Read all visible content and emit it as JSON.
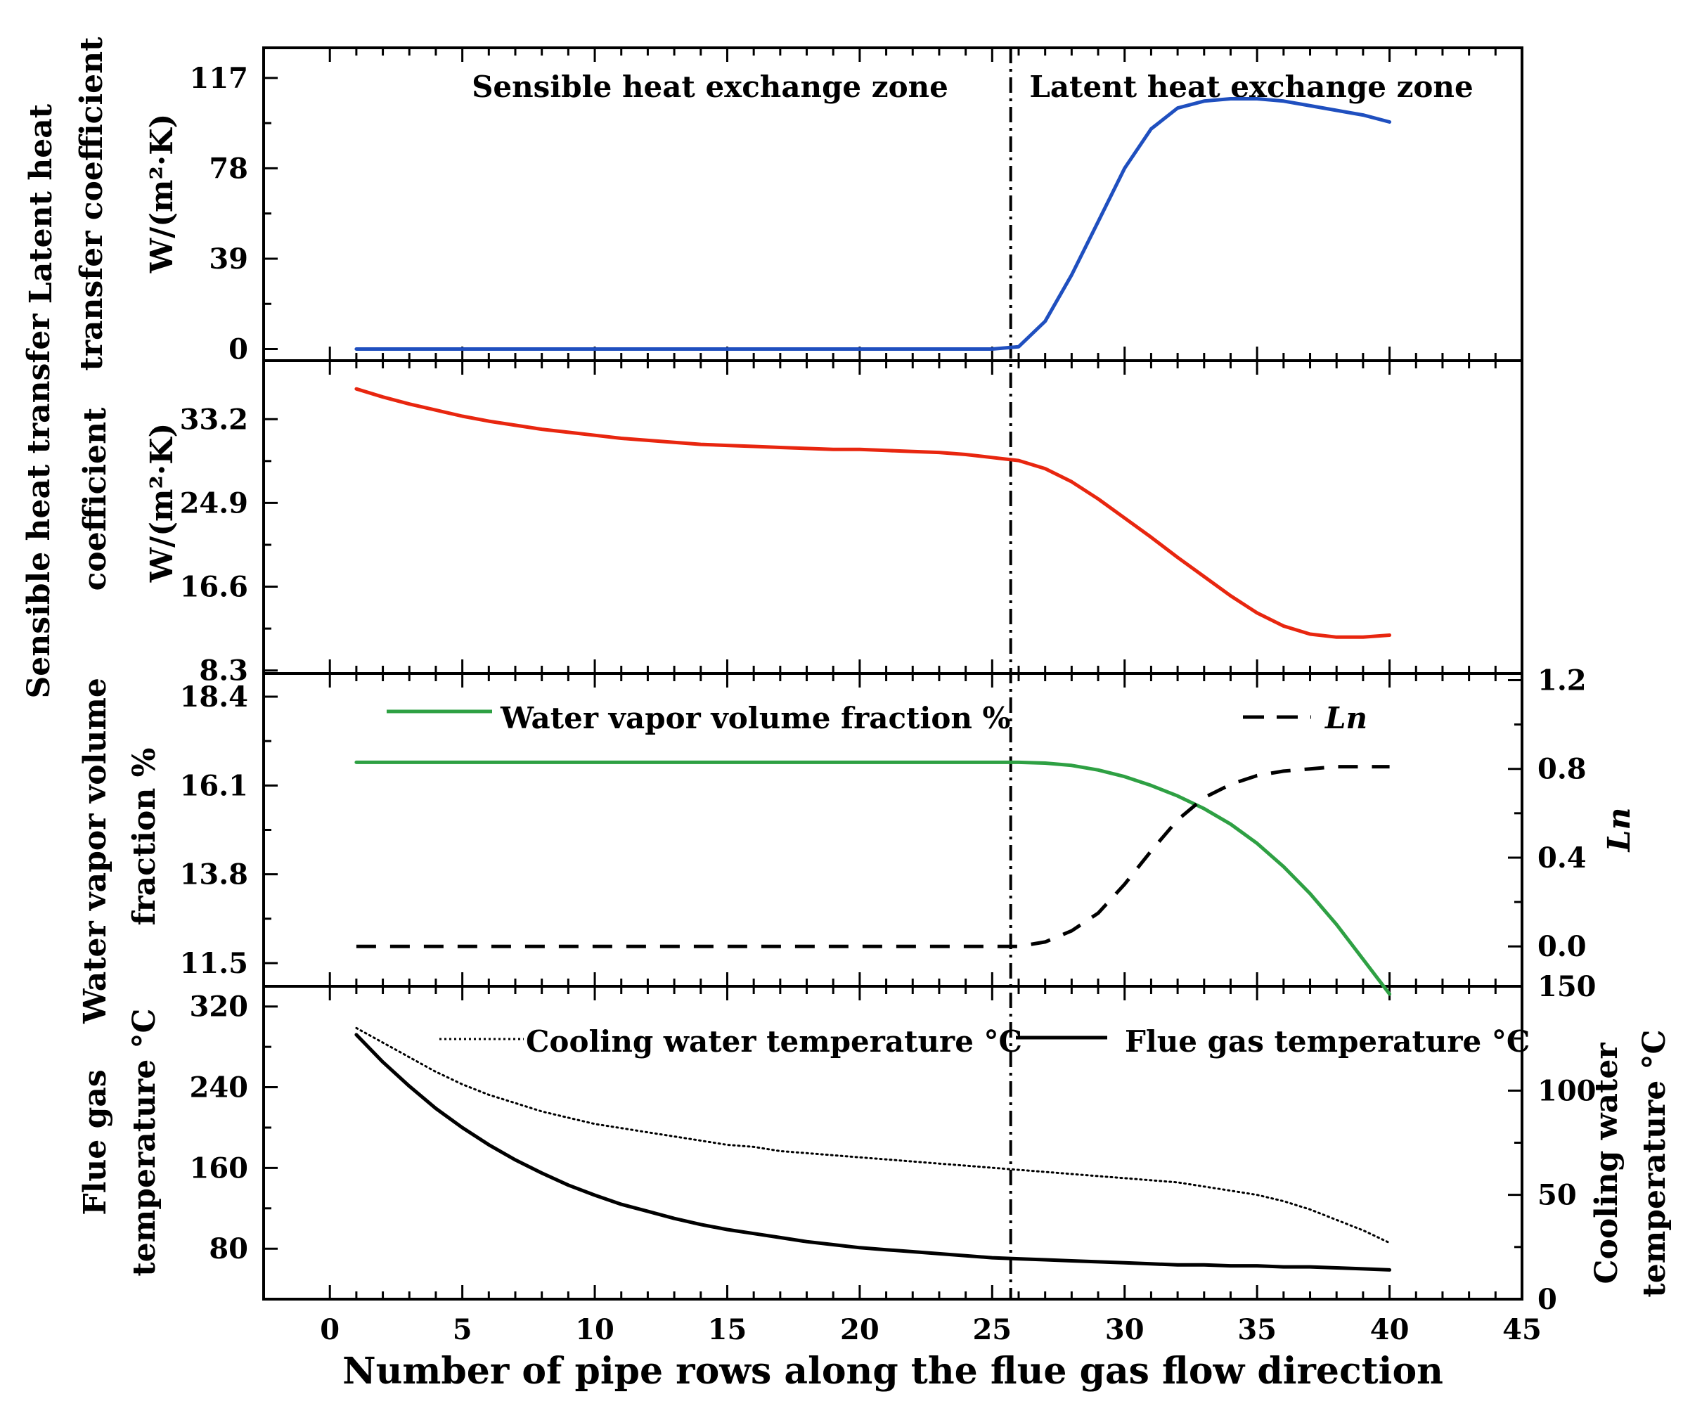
{
  "chart_data": {
    "type": "line",
    "title": "",
    "xlabel": "Number of pipe rows along the flue gas flow direction",
    "xlim": [
      -2.5,
      45
    ],
    "x_ticks": [
      "0",
      "5",
      "10",
      "15",
      "20",
      "25",
      "30",
      "35",
      "40",
      "45"
    ],
    "divider_x": 25.7,
    "zone_labels": {
      "sensible": "Sensible heat exchange zone",
      "latent": "Latent heat exchange zone"
    },
    "colors": {
      "latent": "#1f4fbf",
      "sensible": "#e8260f",
      "vapor": "#2ea043",
      "ln": "#000000",
      "flue": "#000000",
      "cooling": "#000000"
    },
    "panels": [
      {
        "id": "latent",
        "ylabel_lines": [
          "Latent heat",
          "transfer coefficient",
          "W/(m²·K)"
        ],
        "ylim": [
          -5,
          130
        ],
        "y_ticks": [
          "0",
          "39",
          "78",
          "117"
        ],
        "series": [
          {
            "name": "Latent heat transfer coefficient",
            "x": [
              1,
              2,
              3,
              4,
              5,
              6,
              7,
              8,
              9,
              10,
              11,
              12,
              13,
              14,
              15,
              16,
              17,
              18,
              19,
              20,
              21,
              22,
              23,
              24,
              25,
              26,
              27,
              28,
              29,
              30,
              31,
              32,
              33,
              34,
              35,
              36,
              37,
              38,
              39,
              40
            ],
            "values": [
              0,
              0,
              0,
              0,
              0,
              0,
              0,
              0,
              0,
              0,
              0,
              0,
              0,
              0,
              0,
              0,
              0,
              0,
              0,
              0,
              0,
              0,
              0,
              0,
              0,
              1,
              12,
              32,
              55,
              78,
              95,
              104,
              107,
              108,
              108,
              107,
              105,
              103,
              101,
              98
            ]
          }
        ]
      },
      {
        "id": "sensible",
        "ylabel_lines": [
          "Sensible heat transfer",
          "coefficient",
          "W/(m²·K)"
        ],
        "ylim": [
          8.0,
          39.0
        ],
        "y_ticks": [
          "8.3",
          "16.6",
          "24.9",
          "33.2"
        ],
        "series": [
          {
            "name": "Sensible heat transfer coefficient",
            "x": [
              1,
              2,
              3,
              4,
              5,
              6,
              7,
              8,
              9,
              10,
              11,
              12,
              13,
              14,
              15,
              16,
              17,
              18,
              19,
              20,
              21,
              22,
              23,
              24,
              25,
              26,
              27,
              28,
              29,
              30,
              31,
              32,
              33,
              34,
              35,
              36,
              37,
              38,
              39,
              40
            ],
            "values": [
              36.2,
              35.4,
              34.7,
              34.1,
              33.5,
              33.0,
              32.6,
              32.2,
              31.9,
              31.6,
              31.3,
              31.1,
              30.9,
              30.7,
              30.6,
              30.5,
              30.4,
              30.3,
              30.2,
              30.2,
              30.1,
              30.0,
              29.9,
              29.7,
              29.4,
              29.1,
              28.3,
              27.0,
              25.3,
              23.4,
              21.5,
              19.5,
              17.6,
              15.7,
              14.0,
              12.7,
              11.9,
              11.6,
              11.6,
              11.8
            ]
          }
        ]
      },
      {
        "id": "vapor",
        "ylabel_lines": [
          "Water vapor volume",
          "fraction %"
        ],
        "right_ylabel_lines": [
          "Ln"
        ],
        "ylim": [
          10.9,
          19.0
        ],
        "y_ticks": [
          "11.5",
          "13.8",
          "16.1",
          "18.4"
        ],
        "right_ylim": [
          -0.18,
          1.23
        ],
        "right_ticks": [
          "0.0",
          "0.4",
          "0.8",
          "1.2"
        ],
        "legend": {
          "vapor": "Water vapor volume fraction %",
          "ln": "Ln"
        },
        "series": [
          {
            "name": "Water vapor volume fraction %",
            "axis": "left",
            "x": [
              1,
              2,
              3,
              4,
              5,
              6,
              7,
              8,
              9,
              10,
              11,
              12,
              13,
              14,
              15,
              16,
              17,
              18,
              19,
              20,
              21,
              22,
              23,
              24,
              25,
              26,
              27,
              28,
              29,
              30,
              31,
              32,
              33,
              34,
              35,
              36,
              37,
              38,
              39,
              40
            ],
            "values": [
              16.7,
              16.7,
              16.7,
              16.7,
              16.7,
              16.7,
              16.7,
              16.7,
              16.7,
              16.7,
              16.7,
              16.7,
              16.7,
              16.7,
              16.7,
              16.7,
              16.7,
              16.7,
              16.7,
              16.7,
              16.7,
              16.7,
              16.7,
              16.7,
              16.7,
              16.7,
              16.68,
              16.62,
              16.5,
              16.33,
              16.1,
              15.83,
              15.5,
              15.1,
              14.6,
              14.0,
              13.3,
              12.5,
              11.6,
              10.7
            ]
          },
          {
            "name": "Ln",
            "axis": "right",
            "x": [
              1,
              2,
              3,
              4,
              5,
              6,
              7,
              8,
              9,
              10,
              11,
              12,
              13,
              14,
              15,
              16,
              17,
              18,
              19,
              20,
              21,
              22,
              23,
              24,
              25,
              26,
              27,
              28,
              29,
              30,
              31,
              32,
              33,
              34,
              35,
              36,
              37,
              38,
              39,
              40
            ],
            "values": [
              0,
              0,
              0,
              0,
              0,
              0,
              0,
              0,
              0,
              0,
              0,
              0,
              0,
              0,
              0,
              0,
              0,
              0,
              0,
              0,
              0,
              0,
              0,
              0,
              0,
              0,
              0.02,
              0.07,
              0.15,
              0.28,
              0.43,
              0.57,
              0.67,
              0.73,
              0.77,
              0.79,
              0.8,
              0.81,
              0.81,
              0.81
            ]
          }
        ]
      },
      {
        "id": "temperature",
        "ylabel_lines": [
          "Flue gas",
          "temperature °C"
        ],
        "right_ylabel_lines": [
          "Cooling water",
          "temperature °C"
        ],
        "ylim": [
          30,
          340
        ],
        "y_ticks": [
          "80",
          "160",
          "240",
          "320"
        ],
        "right_ylim": [
          0,
          150
        ],
        "right_ticks": [
          "0",
          "50",
          "100",
          "150"
        ],
        "legend": {
          "cooling": "Cooling water temperature °C",
          "flue": "Flue gas temperature °C"
        },
        "series": [
          {
            "name": "Flue gas temperature °C",
            "axis": "left",
            "x": [
              1,
              2,
              3,
              4,
              5,
              6,
              7,
              8,
              9,
              10,
              11,
              12,
              13,
              14,
              15,
              16,
              17,
              18,
              19,
              20,
              21,
              22,
              23,
              24,
              25,
              26,
              27,
              28,
              29,
              30,
              31,
              32,
              33,
              34,
              35,
              36,
              37,
              38,
              39,
              40
            ],
            "values": [
              292,
              265,
              241,
              219,
              200,
              183,
              168,
              155,
              143,
              133,
              124,
              117,
              110,
              104,
              99,
              95,
              91,
              87,
              84,
              81,
              79,
              77,
              75,
              73,
              71,
              70,
              69,
              68,
              67,
              66,
              65,
              64,
              64,
              63,
              63,
              62,
              62,
              61,
              60,
              59
            ]
          },
          {
            "name": "Cooling water temperature °C",
            "axis": "right",
            "x": [
              1,
              2,
              3,
              4,
              5,
              6,
              7,
              8,
              9,
              10,
              11,
              12,
              13,
              14,
              15,
              16,
              17,
              18,
              19,
              20,
              21,
              22,
              23,
              24,
              25,
              26,
              27,
              28,
              29,
              30,
              31,
              32,
              33,
              34,
              35,
              36,
              37,
              38,
              39,
              40
            ],
            "values": [
              130,
              123,
              116,
              109,
              103,
              98,
              94,
              90,
              87,
              84,
              82,
              80,
              78,
              76,
              74,
              73,
              71,
              70,
              69,
              68,
              67,
              66,
              65,
              64,
              63,
              62,
              61,
              60,
              59,
              58,
              57,
              56,
              54,
              52,
              50,
              47,
              43,
              38,
              33,
              27
            ]
          }
        ]
      }
    ]
  }
}
